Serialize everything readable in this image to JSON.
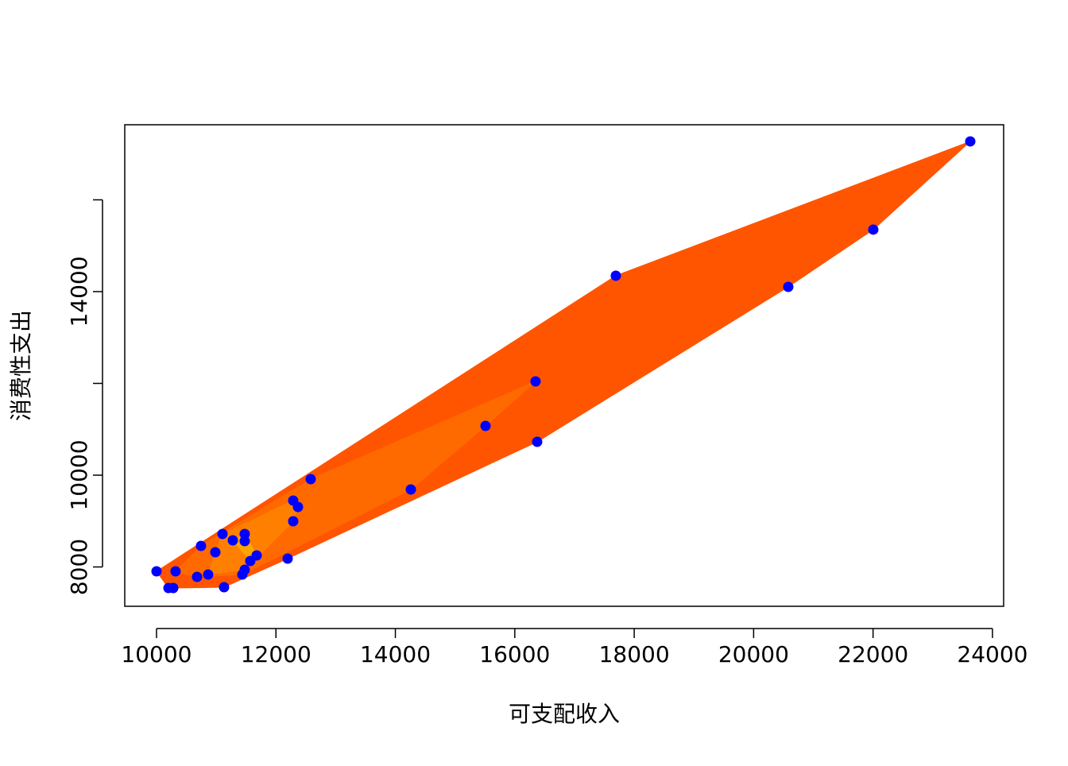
{
  "chart_data": {
    "type": "scatter",
    "x_label": "可支配收入",
    "y_label": "消费性支出",
    "x": [
      10000,
      10200,
      10280,
      10319,
      10679,
      10745,
      10865,
      10985,
      11105,
      11131,
      11278,
      11437,
      11477,
      11477,
      11477,
      11570,
      11677,
      12196,
      12289,
      12289,
      12369,
      12582,
      14259,
      15510,
      16348,
      16375,
      17692,
      20580,
      22004,
      23628
    ],
    "values": [
      7905,
      7541,
      7541,
      7905,
      7784,
      8459,
      7835,
      8320,
      8719,
      7558,
      8580,
      7835,
      7939,
      8719,
      8563,
      8130,
      8251,
      8182,
      8996,
      9446,
      9307,
      9913,
      9688,
      11074,
      12043,
      10727,
      14346,
      14104,
      15351,
      17273
    ],
    "color": "#0000ff",
    "layer_colors": [
      "#ff5500",
      "#ff6a00",
      "#ff8000",
      "#ffa500"
    ],
    "xlim": [
      9468,
      24187
    ],
    "ylim": [
      7143,
      17636
    ],
    "xticks": [
      10000,
      12000,
      14000,
      16000,
      18000,
      20000,
      22000,
      24000
    ],
    "yticks": [
      8000,
      10000,
      {
        "value": 12000,
        "label": null
      },
      14000,
      {
        "value": 16000,
        "label": null
      }
    ]
  }
}
